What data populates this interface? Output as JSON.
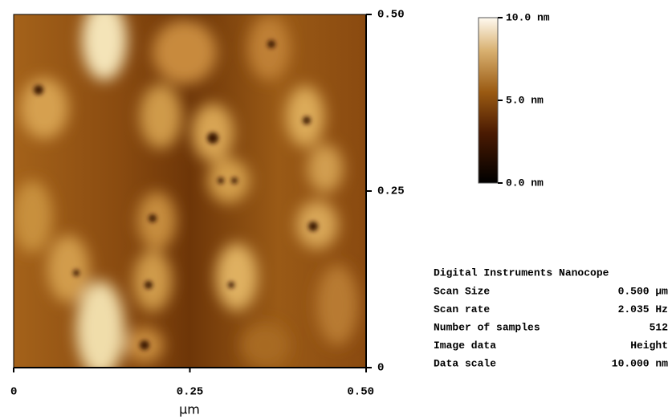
{
  "chart_data": {
    "type": "afm-image",
    "xlabel": "μm",
    "xlim": [
      0,
      0.5
    ],
    "xticks": [
      0,
      {
        "value": 0.25,
        "label": "0.25"
      },
      {
        "value": 0.5,
        "label": "0.50"
      }
    ],
    "ylim": [
      0,
      0.5
    ],
    "yticks": [
      0,
      {
        "value": 0.25,
        "label": "0.25"
      },
      {
        "value": 0.5,
        "label": "0.50"
      }
    ],
    "colorbar": {
      "lim": [
        0,
        10
      ],
      "ticks": [
        {
          "value": 0,
          "label": "0.0 nm"
        },
        {
          "value": 5,
          "label": "5.0 nm"
        },
        {
          "value": 10,
          "label": "10.0 nm"
        }
      ]
    }
  },
  "info": {
    "title": "Digital Instruments Nanocope",
    "rows": [
      [
        "Scan Size",
        "0.500 μm"
      ],
      [
        "Scan rate",
        "2.035 Hz"
      ],
      [
        "Number of samples",
        "512"
      ],
      [
        "Image data",
        "Height"
      ],
      [
        "Data scale",
        "10.000 nm"
      ]
    ]
  }
}
